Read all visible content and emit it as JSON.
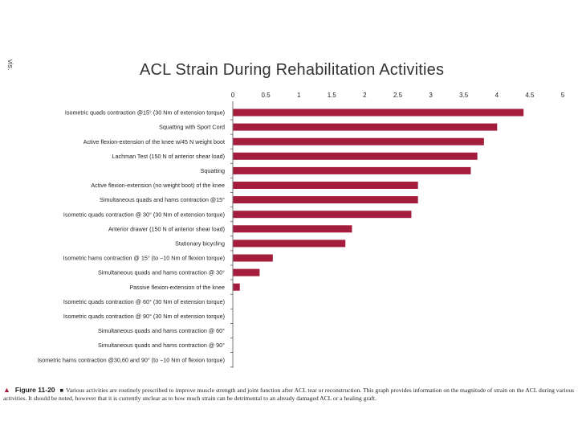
{
  "side_note": "vis.",
  "caption": {
    "figure_label": "Figure 11-20",
    "separator": "■",
    "text": "Various activities are routinely prescribed to improve muscle strength and joint function after ACL tear or reconstruction. This graph provides information on the magnitude of strain on the ACL during various activities. It should be noted, however that it is currently unclear as to how much strain can be detrimental to an already damaged ACL or a healing graft."
  },
  "colors": {
    "bar": "#a41d3c",
    "axis": "#555555"
  },
  "chart_data": {
    "type": "bar",
    "orientation": "horizontal",
    "title": "ACL Strain During Rehabilitation Activities",
    "xlabel": "",
    "ylabel": "",
    "xlim": [
      0,
      5
    ],
    "x_ticks": [
      "0",
      "0.5",
      "1",
      "1.5",
      "2",
      "2.5",
      "3",
      "3.5",
      "4",
      "4.5",
      "5"
    ],
    "x_axis_position": "top",
    "grid": false,
    "legend": "none",
    "categories": [
      "Isometric quads contraction @15° (30 Nm of extension torque)",
      "Squatting with Sport Cord",
      "Active flexion-extension of the knee w/45 N weight boot",
      "Lachman Test (150 N of anterior shear load)",
      "Squatting",
      "Active flexion-extension (no weight boot) of the knee",
      "Simultaneous quads and hams contraction @15°",
      "Isometric quads contraction @ 30° (30 Nm of extension torque)",
      "Anterior drawer (150 N of anterior shear load)",
      "Stationary bicycling",
      "Isometric hams contraction @ 15° (to −10 Nm of flexion torque)",
      "Simultaneous quads and hams contraction @ 30°",
      "Passive flexion-extension of the knee",
      "Isometric quads contraction @ 60° (30 Nm of extension torque)",
      "Isometric quads contraction @ 90° (30 Nm of extension torque)",
      "Simultaneous quads and hams contraction @ 60°",
      "Simultaneous quads and hams contraction @ 90°",
      "Isometric hams contraction @30,60 and 90° (to −10 Nm of flexion torque)"
    ],
    "values": [
      4.4,
      4.0,
      3.8,
      3.7,
      3.6,
      2.8,
      2.8,
      2.7,
      1.8,
      1.7,
      0.6,
      0.4,
      0.1,
      0,
      0,
      0,
      0,
      0
    ]
  }
}
